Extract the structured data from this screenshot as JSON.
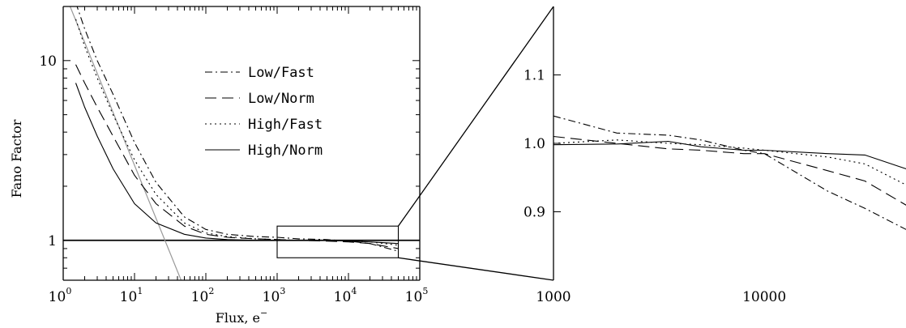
{
  "chart_data": [
    {
      "type": "line",
      "title": "",
      "xlabel": "Flux, e",
      "xlabel_superscript": "−",
      "ylabel": "Fano Factor",
      "xscale": "log",
      "yscale": "log",
      "xlim": [
        1,
        100000
      ],
      "ylim": [
        0.6,
        20
      ],
      "x_ticks": [
        {
          "value": 1,
          "base": "10",
          "exp": "0"
        },
        {
          "value": 10,
          "base": "10",
          "exp": "1"
        },
        {
          "value": 100,
          "base": "10",
          "exp": "2"
        },
        {
          "value": 1000,
          "base": "10",
          "exp": "3"
        },
        {
          "value": 10000,
          "base": "10",
          "exp": "4"
        },
        {
          "value": 100000,
          "base": "10",
          "exp": "5"
        }
      ],
      "y_ticks": [
        {
          "value": 1,
          "label": "1"
        },
        {
          "value": 10,
          "label": "10"
        }
      ],
      "legend_position": "top-right",
      "series": [
        {
          "name": "Low/Fast",
          "dash": "dashdot",
          "x": [
            1.5,
            2,
            3,
            5,
            10,
            20,
            50,
            100,
            200,
            500,
            1000,
            2000,
            5000,
            10000,
            20000,
            50000
          ],
          "y": [
            21,
            15,
            10,
            6.5,
            3.5,
            2.1,
            1.35,
            1.15,
            1.08,
            1.05,
            1.04,
            1.02,
            1.01,
            0.99,
            0.96,
            0.87
          ]
        },
        {
          "name": "Low/Norm",
          "dash": "longdash",
          "x": [
            1.5,
            2,
            3,
            5,
            10,
            20,
            50,
            100,
            200,
            500,
            1000,
            2000,
            5000,
            10000,
            20000,
            50000
          ],
          "y": [
            9.5,
            7.5,
            5.5,
            3.8,
            2.3,
            1.6,
            1.2,
            1.08,
            1.04,
            1.02,
            1.01,
            1.0,
            0.99,
            0.98,
            0.96,
            0.9
          ]
        },
        {
          "name": "High/Fast",
          "dash": "dotted",
          "x": [
            1.5,
            2,
            3,
            5,
            10,
            20,
            50,
            100,
            200,
            500,
            1000,
            2000,
            5000,
            10000,
            20000,
            50000
          ],
          "y": [
            17,
            12,
            8,
            5,
            2.8,
            1.8,
            1.25,
            1.1,
            1.05,
            1.02,
            1.01,
            1.0,
            1.0,
            0.99,
            0.98,
            0.94
          ]
        },
        {
          "name": "High/Norm",
          "dash": "solid",
          "x": [
            1.5,
            2,
            3,
            5,
            10,
            20,
            50,
            100,
            200,
            500,
            1000,
            2000,
            5000,
            10000,
            20000,
            50000
          ],
          "y": [
            7.5,
            5.5,
            3.8,
            2.5,
            1.6,
            1.25,
            1.08,
            1.03,
            1.01,
            1.0,
            1.0,
            1.0,
            1.0,
            0.99,
            0.98,
            0.96
          ]
        }
      ],
      "reference_lines": [
        {
          "kind": "horizontal",
          "y": 1,
          "color": "#000000"
        },
        {
          "kind": "line",
          "color": "#999999",
          "x": [
            1.25,
            45
          ],
          "y": [
            20,
            0.6
          ]
        }
      ],
      "zoom_box": {
        "x": [
          1000,
          50000
        ],
        "y": [
          0.8,
          1.2
        ]
      }
    },
    {
      "type": "line",
      "title": "",
      "xlabel": "",
      "ylabel": "",
      "xscale": "log",
      "yscale": "linear",
      "xlim": [
        1000,
        50000
      ],
      "ylim": [
        0.8,
        1.2
      ],
      "x_ticks": [
        {
          "value": 1000,
          "label": "1000"
        },
        {
          "value": 10000,
          "label": "10000"
        }
      ],
      "y_ticks": [
        {
          "value": 0.9,
          "label": "0.9"
        },
        {
          "value": 1.0,
          "label": "1.0"
        },
        {
          "value": 1.1,
          "label": "1.1"
        }
      ],
      "series": [
        {
          "name": "Low/Fast",
          "dash": "dashdot",
          "x": [
            1000,
            2000,
            3500,
            5000,
            8000,
            10000,
            20000,
            30000,
            50000
          ],
          "y": [
            1.04,
            1.015,
            1.012,
            1.005,
            0.99,
            0.985,
            0.93,
            0.905,
            0.87
          ]
        },
        {
          "name": "Low/Norm",
          "dash": "longdash",
          "x": [
            1000,
            2000,
            3500,
            5000,
            8000,
            10000,
            20000,
            30000,
            50000
          ],
          "y": [
            1.01,
            1.0,
            0.992,
            0.99,
            0.985,
            0.985,
            0.96,
            0.945,
            0.905
          ]
        },
        {
          "name": "High/Fast",
          "dash": "dotted",
          "x": [
            1000,
            2000,
            3500,
            5000,
            8000,
            10000,
            20000,
            30000,
            50000
          ],
          "y": [
            1.0,
            1.005,
            1.0,
            0.998,
            0.993,
            0.99,
            0.98,
            0.97,
            0.935
          ]
        },
        {
          "name": "High/Norm",
          "dash": "solid",
          "x": [
            1000,
            2000,
            3500,
            5000,
            8000,
            10000,
            20000,
            30000,
            50000
          ],
          "y": [
            0.998,
            0.999,
            1.003,
            0.995,
            0.99,
            0.99,
            0.985,
            0.983,
            0.96
          ]
        }
      ]
    }
  ]
}
